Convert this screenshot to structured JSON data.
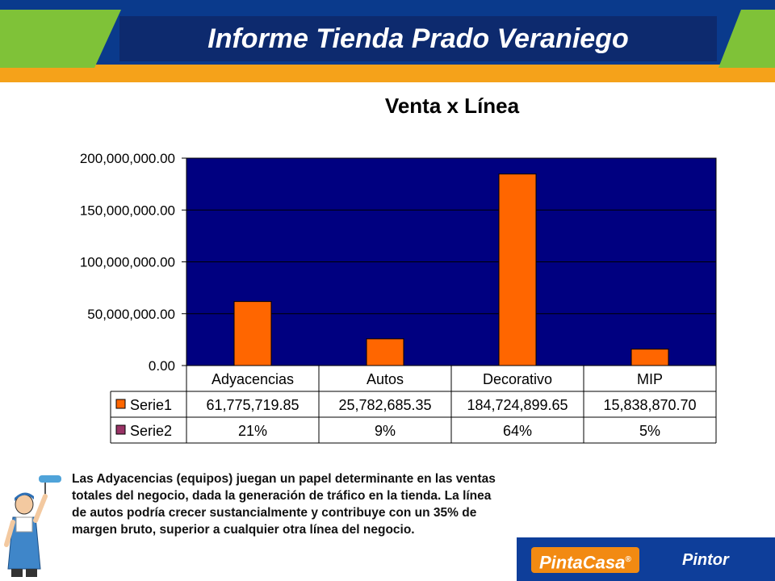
{
  "header": {
    "title": "Informe Tienda Prado Veraniego"
  },
  "chart_data": {
    "type": "bar",
    "title": "Venta x Línea",
    "categories": [
      "Adyacencias",
      "Autos",
      "Decorativo",
      "MIP"
    ],
    "series": [
      {
        "name": "Serie1",
        "values": [
          61775719.85,
          25782685.35,
          184724899.65,
          15838870.7
        ],
        "display": [
          "61,775,719.85",
          "25,782,685.35",
          "184,724,899.65",
          "15,838,870.70"
        ],
        "color": "#ff6600"
      },
      {
        "name": "Serie2",
        "values": [
          21,
          9,
          64,
          5
        ],
        "display": [
          "21%",
          "9%",
          "64%",
          "5%"
        ],
        "color": "#993366"
      }
    ],
    "ylim": [
      0,
      200000000
    ],
    "yticks": [
      0,
      50000000,
      100000000,
      150000000,
      200000000
    ],
    "ytick_labels": [
      "0.00",
      "50,000,000.00",
      "100,000,000.00",
      "150,000,000.00",
      "200,000,000.00"
    ],
    "plot_background": "#000080",
    "grid": true,
    "legend": "data-table"
  },
  "caption": {
    "text": "Las Adyacencias (equipos) juegan un papel determinante en las ventas totales del negocio, dada la generación de tráfico en la tienda. La línea de autos podría crecer sustancialmente y contribuye con un 35% de margen bruto, superior a cualquier otra línea del negocio."
  },
  "logos": {
    "brand1": "PintaCasa",
    "brand1_mark": "®",
    "brand2": "Pintor"
  },
  "colors": {
    "header_blue": "#0a3a8c",
    "header_orange": "#f5a21a",
    "header_green": "#7fc238"
  },
  "icons": [
    "painter-mascot-icon",
    "paint-roller-icon"
  ]
}
